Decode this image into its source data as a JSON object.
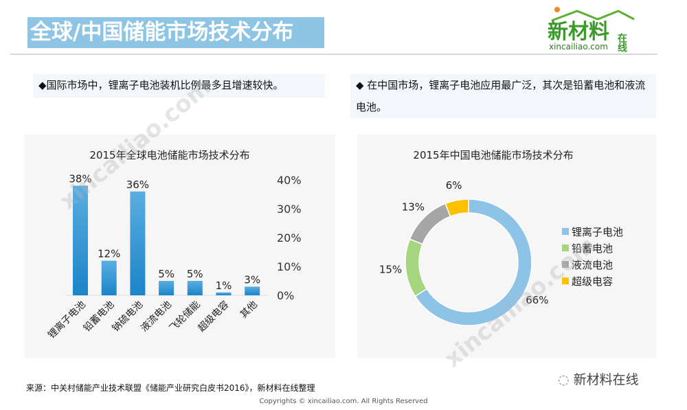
{
  "header": {
    "title": "全球/中国储能市场技术分布",
    "logo_text": "新材料",
    "logo_side": "在线",
    "logo_url": "xincailiao.com"
  },
  "notes": {
    "left": "◆国际市场中，锂离子电池装机比例最多且增速较快。",
    "right": "◆ 在中国市场，锂离子电池应用最广泛，其次是铅蓄电池和液流电池。"
  },
  "chart_data": [
    {
      "type": "bar",
      "title": "2015年全球电池储能市场技术分布",
      "categories": [
        "锂离子电池",
        "铅蓄电池",
        "钠硫电池",
        "液流电池",
        "飞轮储能",
        "超级电容",
        "其他"
      ],
      "values": [
        38,
        12,
        36,
        5,
        5,
        1,
        3
      ],
      "data_labels": [
        "38%",
        "12%",
        "36%",
        "5%",
        "5%",
        "1%",
        "3%"
      ],
      "yticks": [
        "0%",
        "10%",
        "20%",
        "30%",
        "40%"
      ],
      "ylim": [
        0,
        40
      ],
      "color": "#2f8fcf",
      "axis": "right"
    },
    {
      "type": "pie",
      "donut": true,
      "title": "2015年中国电池储能市场技术分布",
      "labels": [
        "锂离子电池",
        "铅蓄电池",
        "液流电池",
        "超级电容"
      ],
      "values": [
        66,
        15,
        13,
        6
      ],
      "data_labels": [
        "66%",
        "15%",
        "13%",
        "6%"
      ],
      "colors": [
        "#8dc3e6",
        "#a5d67f",
        "#a6a6a6",
        "#ffc000"
      ],
      "legend": "right"
    }
  ],
  "footer": {
    "source": "来源：中关村储能产业技术联盟《储能产业研究白皮书2016》，新材料在线整理",
    "copyright": "Copyrights © xincailiao.com. All Rights Reserved",
    "wechat": "新材料在线"
  }
}
